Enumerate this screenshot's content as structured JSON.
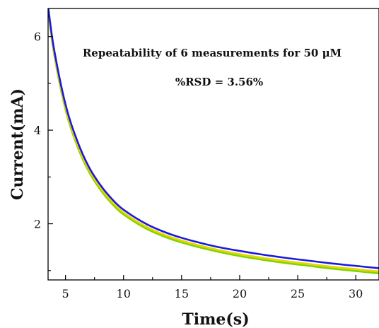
{
  "chart_data": {
    "type": "line",
    "xlabel": "Time(s)",
    "ylabel": "Current(mA)",
    "xlim": [
      3.5,
      32
    ],
    "ylim": [
      0.8,
      6.6
    ],
    "x_ticks": [
      5,
      10,
      15,
      20,
      25,
      30
    ],
    "y_ticks": [
      2,
      4,
      6
    ],
    "x_minor_ticks": [
      7.5,
      12.5,
      17.5,
      22.5,
      27.5
    ],
    "y_minor_ticks": [
      1,
      3,
      5
    ],
    "grid": false,
    "annotations": [
      "Repeatability of 6 measurements  for 50 μM",
      "%RSD = 3.56%"
    ],
    "x": [
      3.5,
      4,
      5,
      6,
      7,
      8,
      9,
      10,
      12,
      14,
      16,
      18,
      20,
      22,
      24,
      26,
      28,
      30,
      32
    ],
    "series": [
      {
        "color": "#1a1adc",
        "values": [
          6.65,
          5.75,
          4.55,
          3.78,
          3.22,
          2.83,
          2.53,
          2.3,
          1.99,
          1.78,
          1.63,
          1.51,
          1.42,
          1.34,
          1.27,
          1.21,
          1.15,
          1.1,
          1.05
        ]
      },
      {
        "color": "#e8d400",
        "values": [
          6.6,
          5.68,
          4.48,
          3.71,
          3.16,
          2.77,
          2.47,
          2.24,
          1.93,
          1.72,
          1.57,
          1.45,
          1.35,
          1.27,
          1.2,
          1.14,
          1.08,
          1.03,
          0.98
        ]
      },
      {
        "color": "#7fd400",
        "values": [
          6.58,
          5.65,
          4.44,
          3.67,
          3.12,
          2.73,
          2.43,
          2.2,
          1.89,
          1.68,
          1.53,
          1.41,
          1.31,
          1.23,
          1.16,
          1.1,
          1.04,
          0.99,
          0.94
        ]
      }
    ]
  }
}
